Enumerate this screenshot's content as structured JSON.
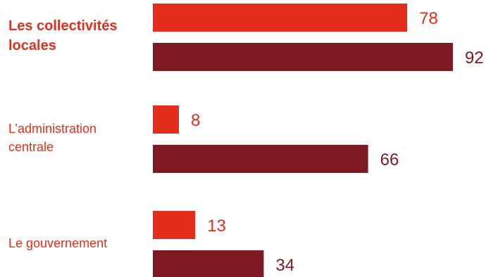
{
  "chart_data": {
    "type": "bar",
    "orientation": "horizontal",
    "categories": [
      [
        "Les collectivités",
        "locales"
      ],
      [
        "L’administration",
        "centrale"
      ],
      [
        "Le gouvernement"
      ]
    ],
    "highlighted_category": 0,
    "series": [
      {
        "values": [
          78,
          8,
          13
        ],
        "color": "#e42d1a"
      },
      {
        "values": [
          92,
          66,
          34
        ],
        "color": "#7d1a22"
      }
    ],
    "xlim": [
      0,
      100
    ],
    "grid": false,
    "legend": "none",
    "label_colors": {
      "category": "#e42d1a",
      "series_0_value": "#e42d1a",
      "series_1_value": "#7d1a22"
    }
  }
}
